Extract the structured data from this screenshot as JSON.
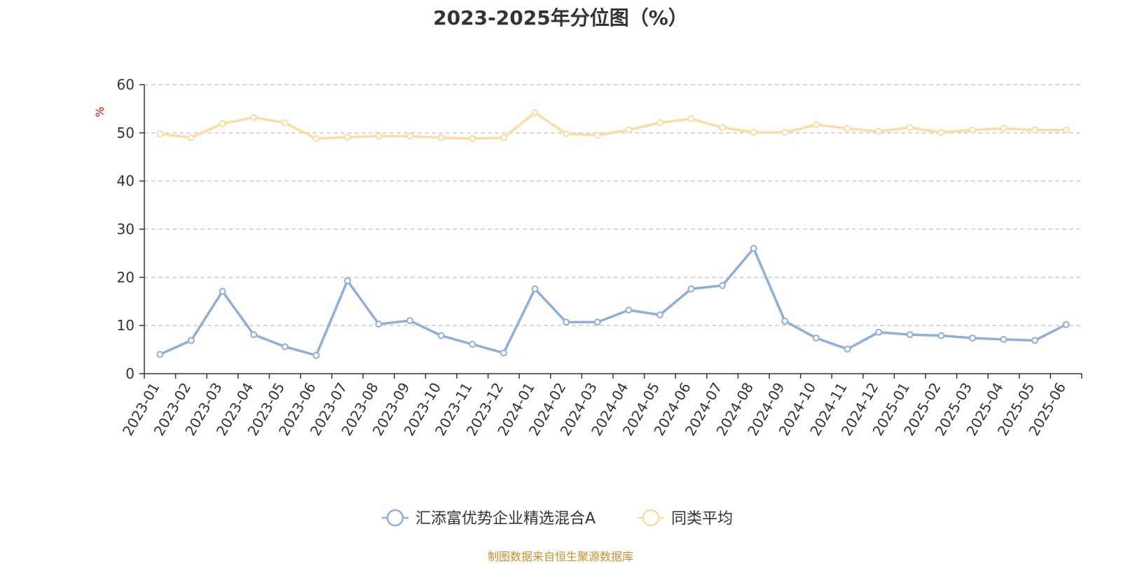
{
  "chart_data": {
    "type": "line",
    "title": "2023-2025年分位图（%）",
    "ylabel": "%",
    "xlabel": "",
    "ylim": [
      0,
      60
    ],
    "yticks": [
      0,
      10,
      20,
      30,
      40,
      50,
      60
    ],
    "grid": true,
    "legend_position": "bottom",
    "categories": [
      "2023-01",
      "2023-02",
      "2023-03",
      "2023-04",
      "2023-05",
      "2023-06",
      "2023-07",
      "2023-08",
      "2023-09",
      "2023-10",
      "2023-11",
      "2023-12",
      "2024-01",
      "2024-02",
      "2024-03",
      "2024-04",
      "2024-05",
      "2024-06",
      "2024-07",
      "2024-08",
      "2024-09",
      "2024-10",
      "2024-11",
      "2024-12",
      "2025-01",
      "2025-02",
      "2025-03",
      "2025-04",
      "2025-05",
      "2025-06"
    ],
    "series": [
      {
        "name": "汇添富优势企业精选混合A",
        "color": "#8eaedb",
        "values": [
          4.0,
          6.9,
          17.1,
          8.1,
          5.6,
          3.8,
          19.3,
          10.3,
          11.0,
          7.9,
          6.1,
          4.3,
          17.6,
          10.7,
          10.7,
          13.2,
          12.2,
          17.6,
          18.3,
          26.0,
          10.9,
          7.4,
          5.1,
          8.6,
          8.1,
          7.9,
          7.4,
          7.1,
          6.9,
          10.2
        ]
      },
      {
        "name": "同类平均",
        "color": "#fcdca0",
        "values": [
          49.8,
          49.0,
          51.9,
          53.2,
          52.1,
          48.8,
          49.1,
          49.3,
          49.3,
          49.0,
          48.8,
          49.0,
          54.2,
          49.8,
          49.5,
          50.6,
          52.1,
          52.9,
          51.1,
          50.1,
          50.1,
          51.7,
          50.9,
          50.3,
          51.1,
          50.1,
          50.6,
          50.9,
          50.6,
          50.6
        ]
      }
    ]
  },
  "source_note": "制图数据来自恒生聚源数据库"
}
